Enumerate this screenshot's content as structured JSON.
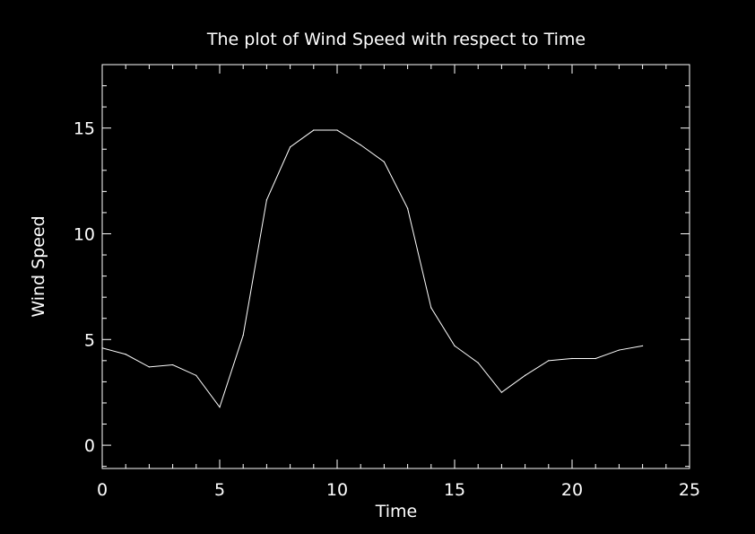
{
  "chart_data": {
    "type": "line",
    "title": "The plot of Wind Speed with respect to Time",
    "xlabel": "Time",
    "ylabel": "Wind Speed",
    "xlim": [
      0,
      25
    ],
    "ylim": [
      -1.1,
      18
    ],
    "x_ticks": [
      0,
      5,
      10,
      15,
      20,
      25
    ],
    "y_ticks": [
      0,
      5,
      10,
      15
    ],
    "x_tick_labels": [
      "0",
      "5",
      "10",
      "15",
      "20",
      "25"
    ],
    "y_tick_labels": [
      "0",
      "5",
      "10",
      "15"
    ],
    "grid": false,
    "background_color": "#000000",
    "foreground_color": "#ffffff",
    "series": [
      {
        "color": "#ffffff",
        "x": [
          0,
          1,
          2,
          3,
          4,
          5,
          6,
          7,
          8,
          9,
          10,
          11,
          12,
          13,
          14,
          15,
          16,
          17,
          18,
          19,
          20,
          21,
          22,
          23
        ],
        "y": [
          4.6,
          4.3,
          3.7,
          3.8,
          3.3,
          1.8,
          5.2,
          11.6,
          14.1,
          14.9,
          14.9,
          14.2,
          13.4,
          11.2,
          6.5,
          4.7,
          3.9,
          2.5,
          3.3,
          4.0,
          4.1,
          4.1,
          4.5,
          4.7
        ]
      }
    ]
  }
}
